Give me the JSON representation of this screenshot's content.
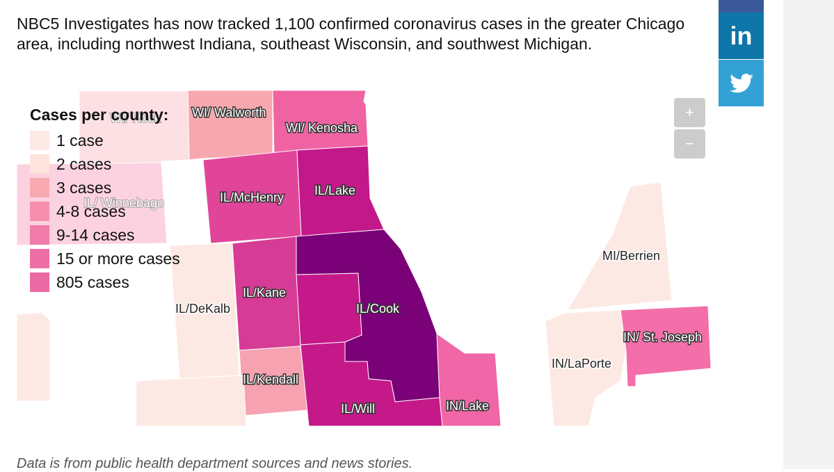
{
  "intro": "NBC5 Investigates has now tracked 1,100 confirmed coronavirus cases in the greater Chicago area, including northwest Indiana, southeast Wisconsin, and southwest Michigan.",
  "share": {
    "linkedin_label": "in",
    "linkedin_icon": "linkedin-icon",
    "twitter_icon": "twitter-icon"
  },
  "legend": {
    "title": "Cases per county:",
    "items": [
      {
        "label": "1 case",
        "color": "#fde9e3"
      },
      {
        "label": "2 cases",
        "color": "#fde4dc"
      },
      {
        "label": "3 cases",
        "color": "#f9aab0"
      },
      {
        "label": "4-8 cases",
        "color": "#f68fae"
      },
      {
        "label": "9-14 cases",
        "color": "#f07aa8"
      },
      {
        "label": "15 or more cases",
        "color": "#ee6fa6"
      },
      {
        "label": "805 cases",
        "color": "#ea6ba3"
      }
    ]
  },
  "map": {
    "counties": {
      "wi_rock": "WI/ Rock",
      "wi_walworth": "WI/ Walworth",
      "wi_kenosha": "WI/ Kenosha",
      "il_winnebago": "IL/ Winnebago",
      "il_mchenry": "IL/McHenry",
      "il_lake": "IL/Lake",
      "il_dekalb": "IL/DeKalb",
      "il_kane": "IL/Kane",
      "il_cook": "IL/Cook",
      "il_kendall": "IL/Kendall",
      "il_will": "IL/Will",
      "in_lake": "IN/Lake",
      "mi_berrien": "MI/Berrien",
      "in_laporte": "IN/LaPorte",
      "in_st_joseph": "IN/ St. Joseph"
    },
    "colors": {
      "one_case": "#fde9e3",
      "rock": "#fde0e4",
      "walworth": "#f7a8ae",
      "kenosha": "#f063a3",
      "winnebago": "#fdd2e0",
      "mchenry": "#e0459a",
      "lake": "#c3188a",
      "kane": "#d63c96",
      "cook": "#7a0177",
      "kendall": "#f6a2b1",
      "will": "#c5198a",
      "in_lake": "#f066a6",
      "st_joseph": "#f46ea9"
    },
    "zoom_in": "+",
    "zoom_out": "−"
  },
  "footnote": "Data is from public health department sources and news stories."
}
